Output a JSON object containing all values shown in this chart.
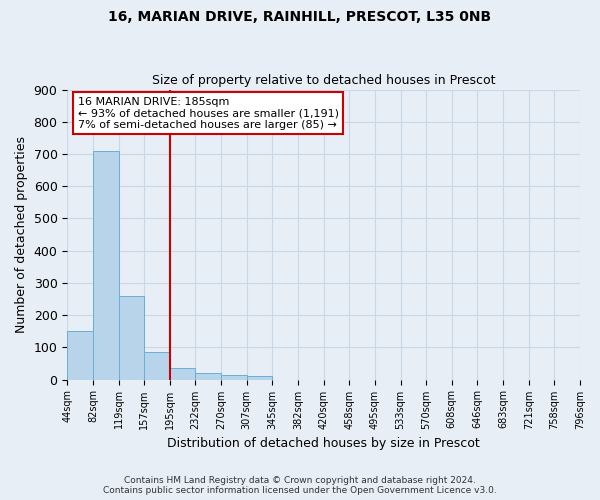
{
  "title": "16, MARIAN DRIVE, RAINHILL, PRESCOT, L35 0NB",
  "subtitle": "Size of property relative to detached houses in Prescot",
  "xlabel": "Distribution of detached houses by size in Prescot",
  "ylabel": "Number of detached properties",
  "bin_labels": [
    "44sqm",
    "82sqm",
    "119sqm",
    "157sqm",
    "195sqm",
    "232sqm",
    "270sqm",
    "307sqm",
    "345sqm",
    "382sqm",
    "420sqm",
    "458sqm",
    "495sqm",
    "533sqm",
    "570sqm",
    "608sqm",
    "646sqm",
    "683sqm",
    "721sqm",
    "758sqm",
    "796sqm"
  ],
  "bar_values": [
    150,
    710,
    260,
    85,
    35,
    20,
    13,
    10,
    0,
    0,
    0,
    0,
    0,
    0,
    0,
    0,
    0,
    0,
    0,
    0
  ],
  "bar_color": "#b8d4ea",
  "bar_edge_color": "#6aaed6",
  "vline_color": "#cc0000",
  "annotation_text": "16 MARIAN DRIVE: 185sqm\n← 93% of detached houses are smaller (1,191)\n7% of semi-detached houses are larger (85) →",
  "annotation_box_color": "#cc0000",
  "ylim": [
    0,
    900
  ],
  "yticks": [
    0,
    100,
    200,
    300,
    400,
    500,
    600,
    700,
    800,
    900
  ],
  "grid_color": "#c8d8e8",
  "footer_text": "Contains HM Land Registry data © Crown copyright and database right 2024.\nContains public sector information licensed under the Open Government Licence v3.0.",
  "bg_color": "#e8eef5",
  "title_fontsize": 10,
  "subtitle_fontsize": 9
}
